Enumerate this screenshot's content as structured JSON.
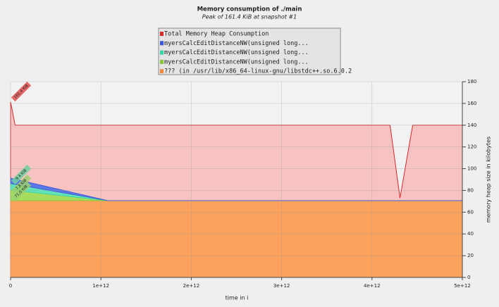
{
  "chart_data": {
    "type": "area",
    "title": "Memory consumption of ./main",
    "subtitle": "Peak of 161.4 KiB at snapshot #1",
    "x_label": "time in i",
    "y_label": "memory heap size in kilobytes",
    "x": [
      0,
      50000000000,
      500000000000,
      1080000000000,
      2000000000000,
      3000000000000,
      4200000000000,
      4310000000000,
      4450000000000,
      5000000000000
    ],
    "series": [
      {
        "name": "Total Memory Heap Consumption",
        "color": "#d42a2a",
        "fill": "#f7c2c2",
        "stacked": false,
        "values": [
          161.4,
          140,
          140,
          140,
          140,
          140,
          140,
          73,
          140,
          140
        ]
      },
      {
        "name": "myersCalcEditDistanceNW(unsigned long...",
        "color": "#3a55d6",
        "fill": "#5c78e6",
        "stacked": true,
        "values": [
          5.0,
          4.8,
          2.7,
          0,
          0,
          0,
          0,
          0,
          0,
          0
        ]
      },
      {
        "name": "myersCalcEditDistanceNW(unsigned long...",
        "color": "#35d6a6",
        "fill": "#62e2bb",
        "stacked": true,
        "values": [
          6.0,
          5.7,
          3.2,
          0,
          0,
          0,
          0,
          0,
          0,
          0
        ]
      },
      {
        "name": "myersCalcEditDistanceNW(unsigned long...",
        "color": "#86c83a",
        "fill": "#a7dc5e",
        "stacked": true,
        "values": [
          9.7,
          9.3,
          5.2,
          0,
          0,
          0,
          0,
          0,
          0,
          0
        ]
      },
      {
        "name": "??? (in /usr/lib/x86_64-linux-gnu/libstdc++.so.6.0.2",
        "color": "#f08a3c",
        "fill": "#fba25c",
        "stacked": true,
        "values": [
          70.6,
          70.6,
          70.6,
          70.6,
          70.6,
          70.6,
          70.6,
          70.6,
          70.6,
          70.6
        ]
      }
    ],
    "annotations": [
      "161.4 KiB",
      "9.4 KiB",
      "7.8 KiB",
      "71.0 KiB"
    ],
    "xlim": [
      0,
      5000000000000
    ],
    "xticks": [
      0,
      {
        "value": 1000000000000,
        "label": "1e+12"
      },
      {
        "value": 2000000000000,
        "label": "2e+12"
      },
      {
        "value": 3000000000000,
        "label": "3e+12"
      },
      {
        "value": 4000000000000,
        "label": "4e+12"
      },
      {
        "value": 5000000000000,
        "label": "5e+12"
      }
    ],
    "ylim": [
      0,
      180
    ],
    "yticks": [
      0,
      20,
      40,
      60,
      80,
      100,
      120,
      140,
      160,
      180
    ],
    "grid": true
  }
}
